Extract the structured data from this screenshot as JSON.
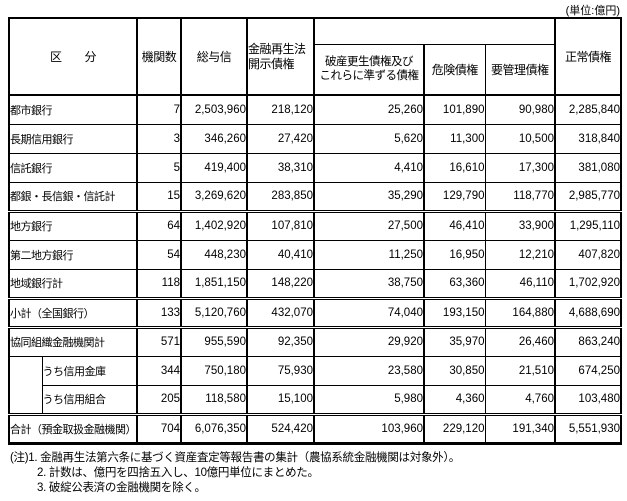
{
  "unit_label": "(単位:億円)",
  "table": {
    "headers": {
      "category": "区　　分",
      "institutions": "機関数",
      "total_credit": "総与信",
      "frl_disclosed_line1": "金融再生法",
      "frl_disclosed_line2": "開示債権",
      "bankruptcy_line1": "破産更生債権及び",
      "bankruptcy_line2": "これらに準ずる債権",
      "risk_claims": "危険債権",
      "special_attention_claims": "要管理債権",
      "normal_claims": "正常債権"
    },
    "rows": [
      {
        "label": "都市銀行",
        "values": [
          "7",
          "2,503,960",
          "218,120",
          "25,260",
          "101,890",
          "90,980",
          "2,285,840"
        ]
      },
      {
        "label": "長期信用銀行",
        "values": [
          "3",
          "346,260",
          "27,420",
          "5,620",
          "11,300",
          "10,500",
          "318,840"
        ]
      },
      {
        "label": "信託銀行",
        "values": [
          "5",
          "419,400",
          "38,310",
          "4,410",
          "16,610",
          "17,300",
          "381,080"
        ]
      },
      {
        "label": "都銀・長信銀・信託計",
        "values": [
          "15",
          "3,269,620",
          "283,850",
          "35,290",
          "129,790",
          "118,770",
          "2,985,770"
        ]
      },
      {
        "label": "地方銀行",
        "values": [
          "64",
          "1,402,920",
          "107,810",
          "27,500",
          "46,410",
          "33,900",
          "1,295,110"
        ]
      },
      {
        "label": "第二地方銀行",
        "values": [
          "54",
          "448,230",
          "40,410",
          "11,250",
          "16,950",
          "12,210",
          "407,820"
        ]
      },
      {
        "label": "地域銀行計",
        "values": [
          "118",
          "1,851,150",
          "148,220",
          "38,750",
          "63,360",
          "46,110",
          "1,702,920"
        ]
      },
      {
        "label": "小計（全国銀行）",
        "values": [
          "133",
          "5,120,760",
          "432,070",
          "74,040",
          "193,150",
          "164,880",
          "4,688,690"
        ]
      },
      {
        "label": "協同組織金融機関計",
        "values": [
          "571",
          "955,590",
          "92,350",
          "29,920",
          "35,970",
          "26,460",
          "863,240"
        ]
      },
      {
        "label": "うち信用金庫",
        "values": [
          "344",
          "750,180",
          "75,930",
          "23,580",
          "30,850",
          "21,510",
          "674,250"
        ]
      },
      {
        "label": "うち信用組合",
        "values": [
          "205",
          "118,580",
          "15,100",
          "5,980",
          "4,360",
          "4,760",
          "103,480"
        ]
      },
      {
        "label": "合計（預金取扱金融機関）",
        "values": [
          "704",
          "6,076,350",
          "524,420",
          "103,960",
          "229,120",
          "191,340",
          "5,551,930"
        ]
      }
    ]
  },
  "notes": [
    "(注)1. 金融再生法第六条に基づく資産査定等報告書の集計（農協系統金融機関は対象外）。",
    "2. 計数は、億円を四捨五入し、10億円単位にまとめた。",
    "3. 破綻公表済の金融機関を除く。"
  ]
}
